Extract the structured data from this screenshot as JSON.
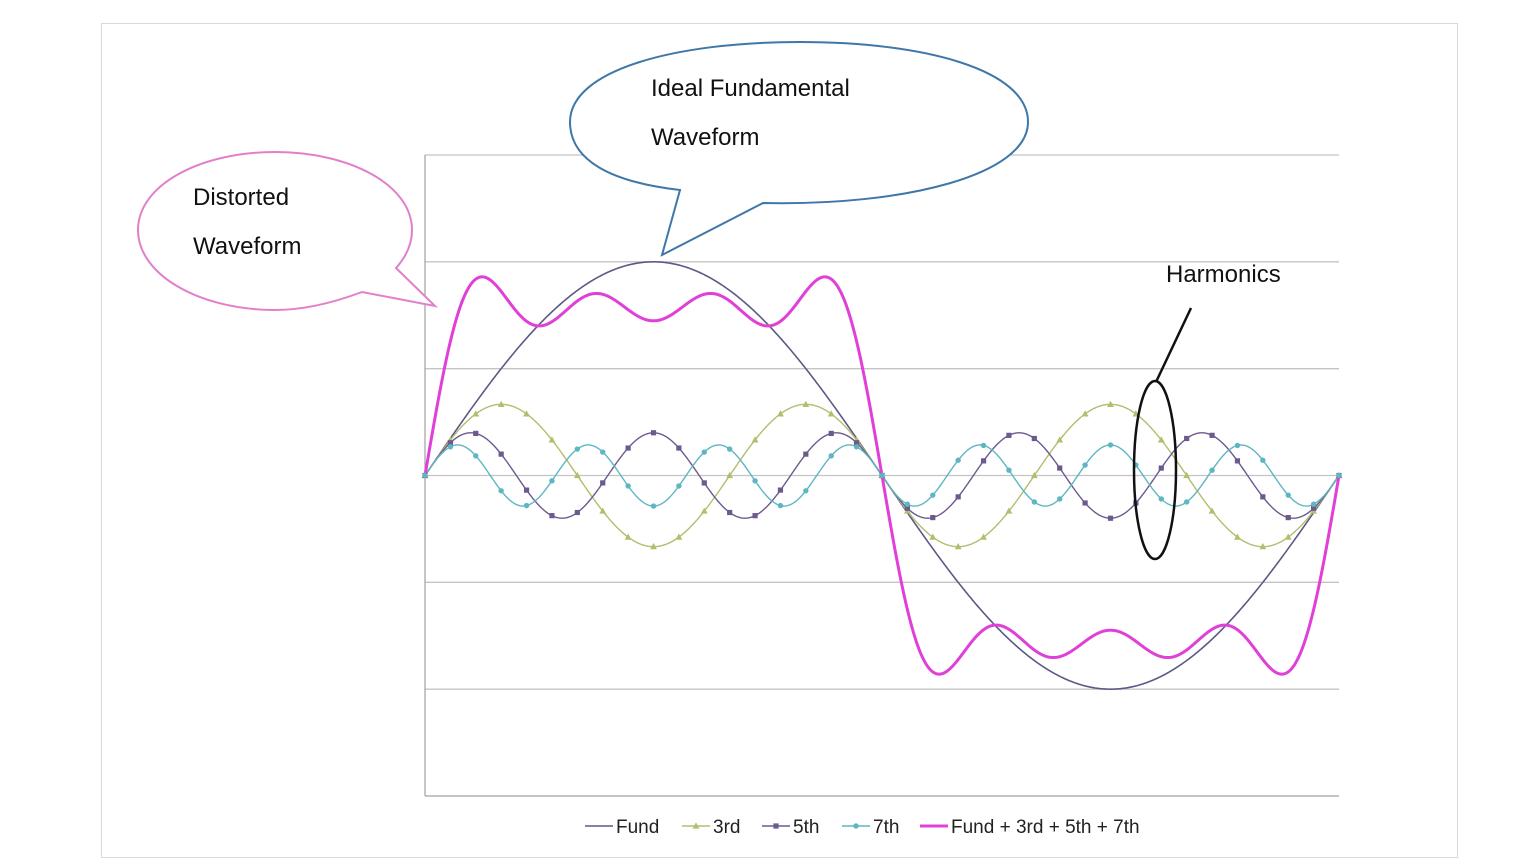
{
  "chart_data": {
    "type": "line",
    "title": "",
    "xlabel": "",
    "ylabel": "",
    "grid": true,
    "legend_placement": "bottom",
    "x_range": [
      0,
      360
    ],
    "y_range": [
      -1.5,
      1.5
    ],
    "gridlines_y": [
      -1,
      -0.5,
      0,
      0.5,
      1,
      1.5
    ],
    "series": [
      {
        "name": "Fund",
        "key": "fund",
        "color": "#5b5a86",
        "width": 1.6,
        "marker": "none",
        "amplitude": 1.0,
        "harmonic": 1
      },
      {
        "name": "3rd",
        "key": "h3",
        "color": "#b3bd6e",
        "width": 1.4,
        "marker": "triangle",
        "amplitude": 0.333,
        "harmonic": 3
      },
      {
        "name": "5th",
        "key": "h5",
        "color": "#6c5a8f",
        "width": 1.4,
        "marker": "square",
        "amplitude": 0.2,
        "harmonic": 5
      },
      {
        "name": "7th",
        "key": "h7",
        "color": "#5fb6c3",
        "width": 1.4,
        "marker": "circle",
        "amplitude": 0.143,
        "harmonic": 7
      },
      {
        "name": "Fund + 3rd + 5th + 7th",
        "key": "sum",
        "color": "#e040d8",
        "width": 3,
        "marker": "none"
      }
    ]
  },
  "callouts": {
    "ideal": {
      "line1": "Ideal Fundamental",
      "line2": "Waveform",
      "color": "#3f77a8"
    },
    "distorted": {
      "line1": "Distorted",
      "line2": "Waveform",
      "color": "#e27fcb"
    },
    "harmonics": {
      "label": "Harmonics",
      "color": "#111111"
    }
  }
}
